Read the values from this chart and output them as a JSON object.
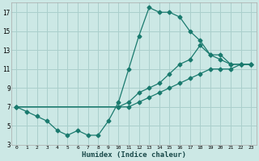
{
  "xlabel": "Humidex (Indice chaleur)",
  "bg_color": "#cce8e5",
  "grid_color": "#aacfcc",
  "line_color": "#1a7a6e",
  "xlim": [
    -0.5,
    23.5
  ],
  "ylim": [
    3,
    18
  ],
  "xticks": [
    0,
    1,
    2,
    3,
    4,
    5,
    6,
    7,
    8,
    9,
    10,
    11,
    12,
    13,
    14,
    15,
    16,
    17,
    18,
    19,
    20,
    21,
    22,
    23
  ],
  "yticks": [
    3,
    5,
    7,
    9,
    11,
    13,
    15,
    17
  ],
  "line1_x": [
    0,
    1,
    2,
    3,
    4,
    5,
    6,
    7,
    8,
    9,
    10,
    11,
    12,
    13,
    14,
    15,
    16,
    17,
    18,
    19,
    20,
    21,
    22,
    23
  ],
  "line1_y": [
    7,
    6.5,
    6,
    5.5,
    4.5,
    4,
    4.5,
    4,
    4,
    5.5,
    7.5,
    11,
    14.5,
    17.5,
    17,
    17,
    16.5,
    15,
    14,
    12.5,
    12,
    11.5,
    11.5,
    11.5
  ],
  "line2_x": [
    0,
    10,
    11,
    12,
    13,
    14,
    15,
    16,
    17,
    18,
    19,
    20,
    21,
    22,
    23
  ],
  "line2_y": [
    7,
    7,
    7.5,
    8.5,
    9,
    9.5,
    10.5,
    11.5,
    12,
    13.5,
    12.5,
    12.5,
    11.5,
    11.5,
    11.5
  ],
  "line3_x": [
    0,
    10,
    11,
    12,
    13,
    14,
    15,
    16,
    17,
    18,
    19,
    20,
    21,
    22,
    23
  ],
  "line3_y": [
    7,
    7,
    7,
    7.5,
    8,
    8.5,
    9,
    9.5,
    10,
    10.5,
    11,
    11,
    11,
    11.5,
    11.5
  ]
}
